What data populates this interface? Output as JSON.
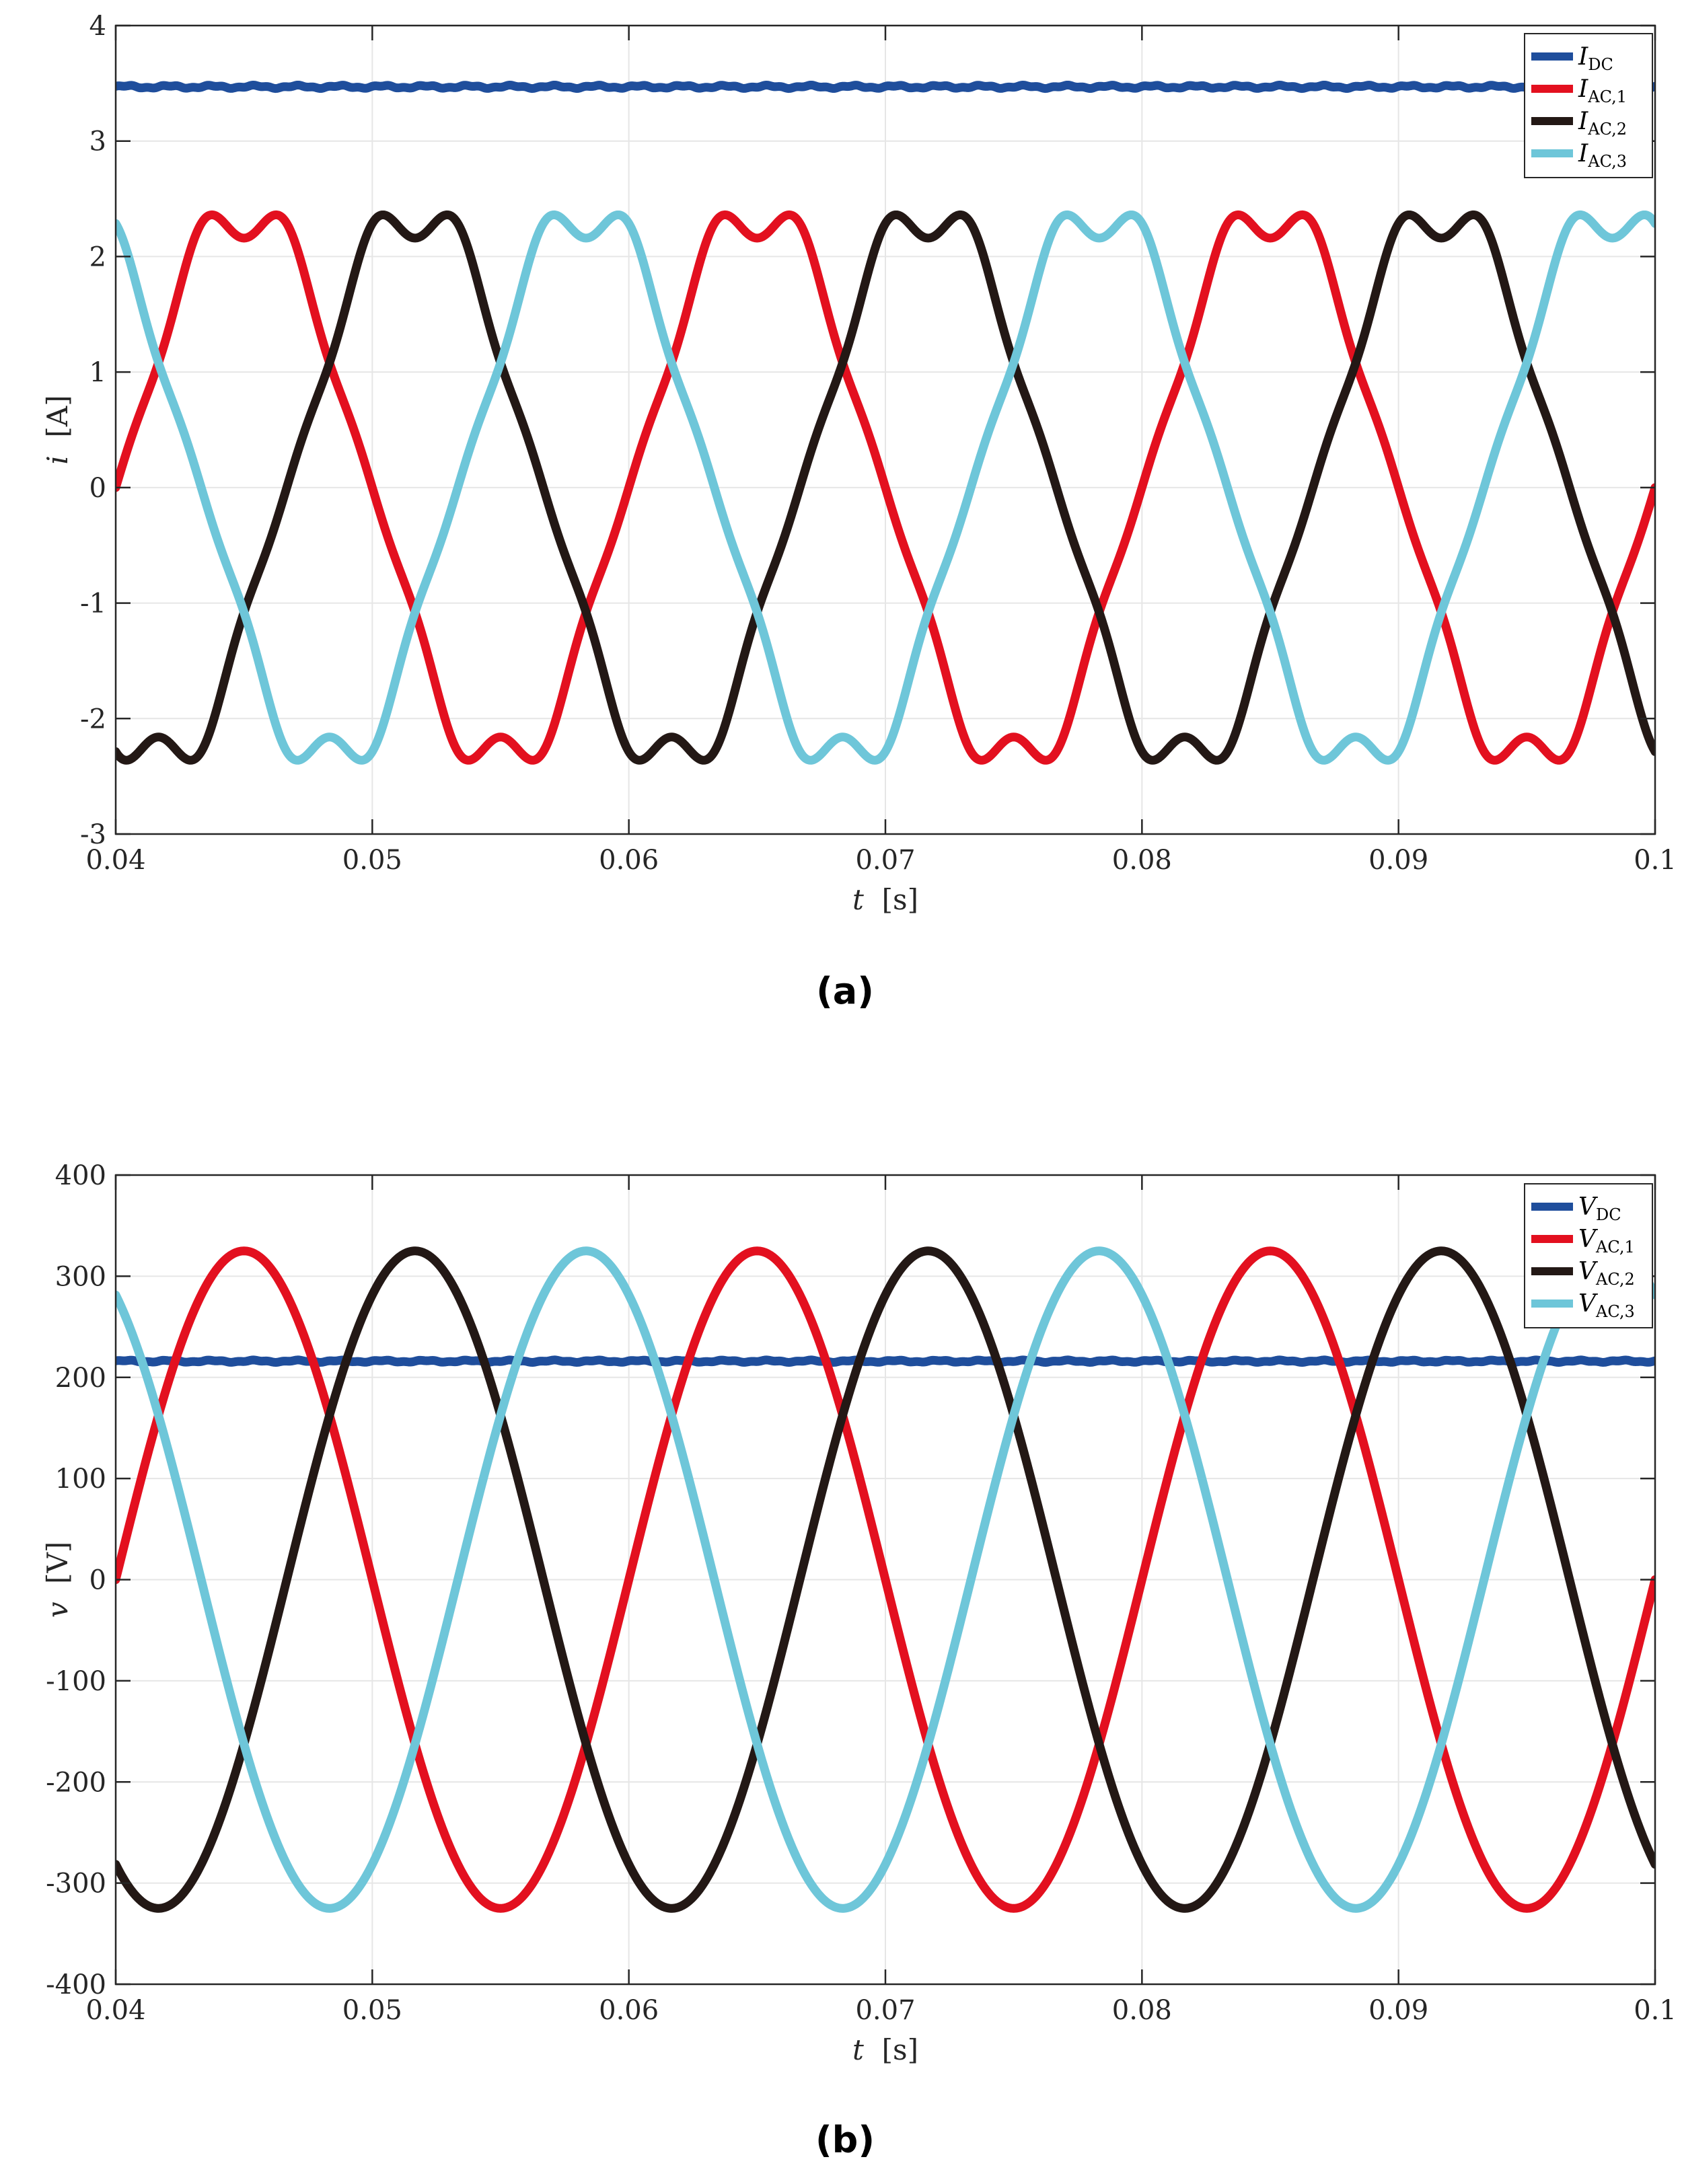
{
  "chart_data": [
    {
      "type": "line",
      "panel_label": "(a)",
      "xlabel": {
        "symbol": "t",
        "unit": "[s]"
      },
      "ylabel": {
        "symbol": "i",
        "unit": "[A]"
      },
      "xlim": [
        0.04,
        0.1
      ],
      "ylim": [
        -3,
        4
      ],
      "xticks": [
        0.04,
        0.05,
        0.06,
        0.07,
        0.08,
        0.09,
        0.1
      ],
      "xtick_labels": [
        "0.04",
        "0.05",
        "0.06",
        "0.07",
        "0.08",
        "0.09",
        "0.1"
      ],
      "yticks": [
        -3,
        -2,
        -1,
        0,
        1,
        2,
        3,
        4
      ],
      "ytick_labels": [
        "-3",
        "-2",
        "-1",
        "0",
        "1",
        "2",
        "3",
        "4"
      ],
      "grid": true,
      "legend_position": "top-right",
      "frequency_hz": 50,
      "series": [
        {
          "name": "I_DC",
          "label_main": "I",
          "label_sub": "DC",
          "color": "#1f4e9c",
          "kind": "dc",
          "value": 3.47,
          "ripple": 0.01
        },
        {
          "name": "I_AC,1",
          "label_main": "I",
          "label_sub": "AC,1",
          "color": "#e3101f",
          "kind": "ac",
          "amplitude": 2.4,
          "phase_deg": 0,
          "harmonic5": 0.06,
          "harmonic7": 0.04
        },
        {
          "name": "I_AC,2",
          "label_main": "I",
          "label_sub": "AC,2",
          "color": "#231815",
          "kind": "ac",
          "amplitude": 2.4,
          "phase_deg": -120,
          "harmonic5": 0.06,
          "harmonic7": 0.04
        },
        {
          "name": "I_AC,3",
          "label_main": "I",
          "label_sub": "AC,3",
          "color": "#6ec6d9",
          "kind": "ac",
          "amplitude": 2.4,
          "phase_deg": 120,
          "harmonic5": 0.06,
          "harmonic7": 0.04
        }
      ]
    },
    {
      "type": "line",
      "panel_label": "(b)",
      "xlabel": {
        "symbol": "t",
        "unit": "[s]"
      },
      "ylabel": {
        "symbol": "v",
        "unit": "[V]"
      },
      "xlim": [
        0.04,
        0.1
      ],
      "ylim": [
        -400,
        400
      ],
      "xticks": [
        0.04,
        0.05,
        0.06,
        0.07,
        0.08,
        0.09,
        0.1
      ],
      "xtick_labels": [
        "0.04",
        "0.05",
        "0.06",
        "0.07",
        "0.08",
        "0.09",
        "0.1"
      ],
      "yticks": [
        -400,
        -300,
        -200,
        -100,
        0,
        100,
        200,
        300,
        400
      ],
      "ytick_labels": [
        "-400",
        "-300",
        "-200",
        "-100",
        "0",
        "100",
        "200",
        "300",
        "400"
      ],
      "grid": true,
      "legend_position": "top-right",
      "frequency_hz": 50,
      "series": [
        {
          "name": "V_DC",
          "label_main": "V",
          "label_sub": "DC",
          "color": "#1f4e9c",
          "kind": "dc",
          "value": 216,
          "ripple": 0.8
        },
        {
          "name": "V_AC,1",
          "label_main": "V",
          "label_sub": "AC,1",
          "color": "#e3101f",
          "kind": "ac",
          "amplitude": 325,
          "phase_deg": 0,
          "harmonic5": 0,
          "harmonic7": 0
        },
        {
          "name": "V_AC,2",
          "label_main": "V",
          "label_sub": "AC,2",
          "color": "#231815",
          "kind": "ac",
          "amplitude": 325,
          "phase_deg": -120,
          "harmonic5": 0,
          "harmonic7": 0
        },
        {
          "name": "V_AC,3",
          "label_main": "V",
          "label_sub": "AC,3",
          "color": "#6ec6d9",
          "kind": "ac",
          "amplitude": 325,
          "phase_deg": 120,
          "harmonic5": 0,
          "harmonic7": 0
        }
      ]
    }
  ]
}
